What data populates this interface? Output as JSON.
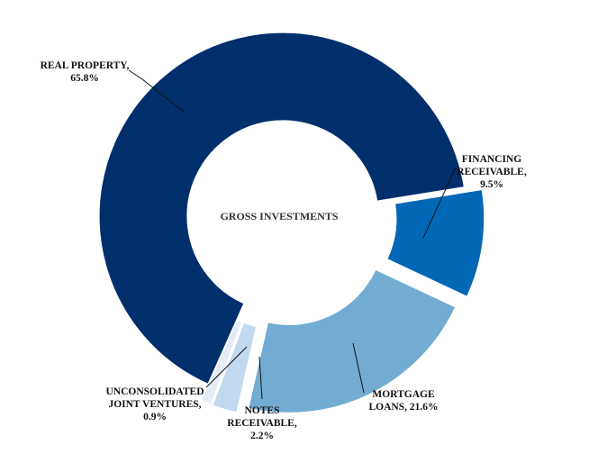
{
  "chart_data": {
    "type": "pie",
    "title": "GROSS INVESTMENTS",
    "slices": [
      {
        "name": "REAL PROPERTY",
        "label_lines": [
          "REAL PROPERTY,",
          "65.8%"
        ],
        "value": 65.8,
        "color": "#002f6c"
      },
      {
        "name": "FINANCING RECEIVABLE",
        "label_lines": [
          "FINANCING",
          "RECEIVABLE,",
          "9.5%"
        ],
        "value": 9.5,
        "color": "#0168b6"
      },
      {
        "name": "MORTGAGE LOANS",
        "label_lines": [
          "MORTGAGE",
          "LOANS, 21.6%"
        ],
        "value": 21.6,
        "color": "#72acd2"
      },
      {
        "name": "NOTES RECEIVABLE",
        "label_lines": [
          "NOTES",
          "RECEIVABLE,",
          "2.2%"
        ],
        "value": 2.2,
        "color": "#c3d9ef"
      },
      {
        "name": "UNCONSOLIDATED JOINT VENTURES",
        "label_lines": [
          "UNCONSOLIDATED",
          "JOINT VENTURES,",
          "0.9%"
        ],
        "value": 0.9,
        "color": "#e3ecf6"
      }
    ]
  }
}
